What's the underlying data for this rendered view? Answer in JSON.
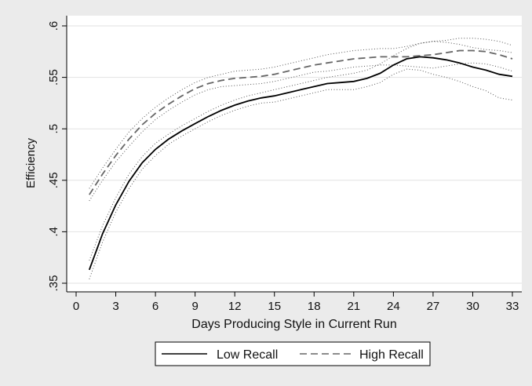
{
  "chart_data": {
    "type": "line",
    "title": "",
    "xlabel": "Days Producing Style in Current Run",
    "ylabel": "Efficiency",
    "xlim": [
      0,
      33
    ],
    "ylim": [
      0.35,
      0.6
    ],
    "x_ticks": [
      "0",
      "3",
      "6",
      "9",
      "12",
      "15",
      "18",
      "21",
      "24",
      "27",
      "30",
      "33"
    ],
    "y_ticks": [
      ".35",
      ".4",
      ".45",
      ".5",
      ".55",
      ".6"
    ],
    "grid": "horizontal",
    "legend_position": "bottom",
    "x": [
      1,
      2,
      3,
      4,
      5,
      6,
      7,
      8,
      9,
      10,
      11,
      12,
      13,
      14,
      15,
      16,
      17,
      18,
      19,
      20,
      21,
      22,
      23,
      24,
      25,
      26,
      27,
      28,
      29,
      30,
      31,
      32,
      33
    ],
    "series": [
      {
        "name": "Low Recall",
        "style": "solid",
        "color": "#000000",
        "values": [
          0.363,
          0.398,
          0.426,
          0.449,
          0.467,
          0.48,
          0.49,
          0.498,
          0.505,
          0.512,
          0.518,
          0.523,
          0.527,
          0.53,
          0.532,
          0.535,
          0.538,
          0.541,
          0.544,
          0.545,
          0.546,
          0.549,
          0.554,
          0.562,
          0.568,
          0.57,
          0.569,
          0.567,
          0.564,
          0.56,
          0.557,
          0.553,
          0.551
        ],
        "ci_upper": [
          0.372,
          0.406,
          0.433,
          0.456,
          0.473,
          0.486,
          0.495,
          0.503,
          0.51,
          0.517,
          0.523,
          0.528,
          0.532,
          0.535,
          0.538,
          0.541,
          0.544,
          0.547,
          0.55,
          0.552,
          0.554,
          0.557,
          0.563,
          0.571,
          0.578,
          0.583,
          0.585,
          0.584,
          0.582,
          0.579,
          0.577,
          0.576,
          0.574
        ],
        "ci_lower": [
          0.354,
          0.39,
          0.419,
          0.442,
          0.461,
          0.474,
          0.485,
          0.493,
          0.5,
          0.507,
          0.513,
          0.518,
          0.522,
          0.525,
          0.526,
          0.529,
          0.532,
          0.535,
          0.538,
          0.538,
          0.538,
          0.541,
          0.545,
          0.553,
          0.558,
          0.557,
          0.553,
          0.55,
          0.546,
          0.541,
          0.537,
          0.53,
          0.528
        ]
      },
      {
        "name": "High Recall",
        "style": "dashed",
        "color": "#666666",
        "values": [
          0.436,
          0.456,
          0.474,
          0.49,
          0.504,
          0.515,
          0.524,
          0.532,
          0.539,
          0.544,
          0.547,
          0.549,
          0.55,
          0.551,
          0.553,
          0.556,
          0.559,
          0.562,
          0.564,
          0.566,
          0.568,
          0.569,
          0.57,
          0.57,
          0.57,
          0.571,
          0.572,
          0.574,
          0.576,
          0.576,
          0.575,
          0.572,
          0.568
        ],
        "ci_upper": [
          0.442,
          0.462,
          0.48,
          0.497,
          0.51,
          0.521,
          0.53,
          0.538,
          0.545,
          0.55,
          0.553,
          0.556,
          0.557,
          0.558,
          0.56,
          0.563,
          0.566,
          0.569,
          0.572,
          0.574,
          0.576,
          0.577,
          0.578,
          0.578,
          0.58,
          0.583,
          0.585,
          0.586,
          0.588,
          0.588,
          0.587,
          0.585,
          0.581
        ],
        "ci_lower": [
          0.43,
          0.45,
          0.468,
          0.483,
          0.497,
          0.509,
          0.518,
          0.526,
          0.533,
          0.538,
          0.541,
          0.542,
          0.543,
          0.544,
          0.546,
          0.549,
          0.552,
          0.555,
          0.556,
          0.558,
          0.56,
          0.561,
          0.562,
          0.562,
          0.561,
          0.56,
          0.559,
          0.561,
          0.563,
          0.564,
          0.563,
          0.56,
          0.556
        ]
      }
    ],
    "colors": {
      "background": "#ebebeb",
      "plot_background": "#ffffff",
      "grid": "#e2e2e2",
      "ci_line": "#555555"
    }
  }
}
